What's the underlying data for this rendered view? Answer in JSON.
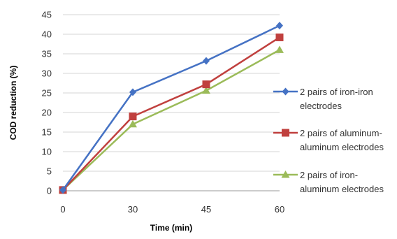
{
  "chart_data": {
    "type": "line",
    "title": "",
    "xlabel": "Time (min)",
    "ylabel": "COD reduction (%)",
    "categories": [
      "0",
      "30",
      "45",
      "60"
    ],
    "ylim": [
      0,
      45
    ],
    "yticks": [
      "0",
      "5",
      "10",
      "15",
      "20",
      "25",
      "30",
      "35",
      "40",
      "45"
    ],
    "grid": "horizontal",
    "legend_position": "right",
    "series": [
      {
        "name": "2 pairs of iron-iron electrodes",
        "legend_lines": [
          "2 pairs of iron-iron",
          "electrodes"
        ],
        "values": [
          0.2,
          25.2,
          33.2,
          42.2
        ],
        "color": "#4572C4",
        "marker": "diamond"
      },
      {
        "name": "2 pairs of aluminum-aluminum electrodes",
        "legend_lines": [
          "2 pairs of aluminum-",
          "aluminum electrodes"
        ],
        "values": [
          0.2,
          19.0,
          27.2,
          39.2
        ],
        "color": "#C0403E",
        "marker": "square"
      },
      {
        "name": "2 pairs of iron-aluminum electrodes",
        "legend_lines": [
          "2 pairs of iron-",
          "aluminum electrodes"
        ],
        "values": [
          0.2,
          17.0,
          25.6,
          36.0
        ],
        "color": "#9BBB59",
        "marker": "triangle"
      }
    ]
  }
}
